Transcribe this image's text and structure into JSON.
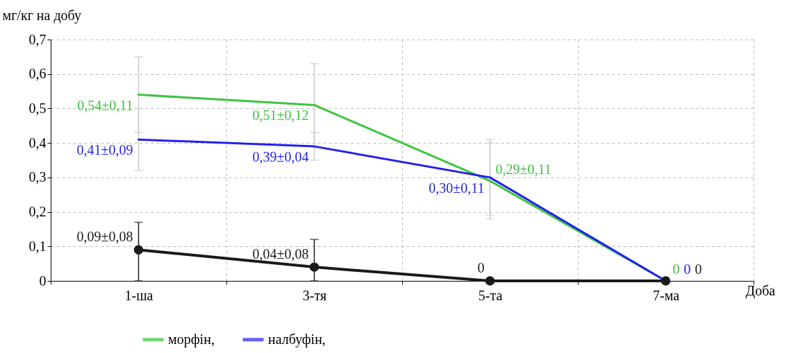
{
  "chart_data": {
    "type": "line",
    "xlabel": "Доба",
    "ylabel": "мг/кг на добу",
    "categories": [
      "1-ша",
      "3-тя",
      "5-та",
      "7-ма"
    ],
    "series": [
      {
        "name": "морфін,",
        "color": "#3cc43c",
        "values": [
          0.54,
          0.51,
          0.29,
          0
        ],
        "errors": [
          0.11,
          0.12,
          0.11,
          null
        ],
        "value_labels": [
          "0,54±0,11",
          "0,51±0,12",
          "0,29±0,11",
          "0"
        ]
      },
      {
        "name": "налбуфін,",
        "color": "#2020f0",
        "values": [
          0.41,
          0.39,
          0.3,
          0
        ],
        "errors": [
          0.09,
          0.04,
          0.11,
          null
        ],
        "value_labels": [
          "0,41±0,09",
          "0,39±0,04",
          "0,30±0,11",
          "0"
        ]
      },
      {
        "color": "#1a1a1a",
        "marker": "circle",
        "values": [
          0.09,
          0.04,
          0,
          0
        ],
        "errors": [
          [
            0,
            0.17
          ],
          [
            0,
            0.12
          ],
          null,
          null
        ],
        "value_labels": [
          "0,09±0,08",
          "0,04±0,08",
          "0",
          "0"
        ]
      }
    ],
    "ylim": [
      0,
      0.7
    ],
    "yticks": [
      0,
      {
        "value": 0.1,
        "label": "0,1"
      },
      {
        "value": 0.2,
        "label": "0,2"
      },
      {
        "value": 0.3,
        "label": "0,3"
      },
      {
        "value": 0.4,
        "label": "0,4"
      },
      {
        "value": 0.5,
        "label": "0,5"
      },
      {
        "value": 0.6,
        "label": "0,6"
      },
      {
        "value": 0.7,
        "label": "0,7"
      }
    ],
    "grid": true,
    "legend": "bottom"
  }
}
